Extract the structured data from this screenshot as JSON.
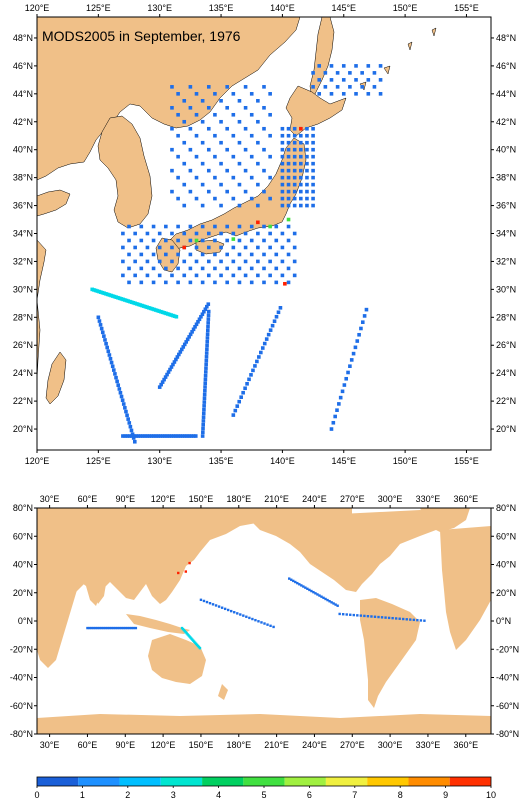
{
  "top_map": {
    "title": "MODS2005 in September, 1976",
    "lon_ticks": [
      "120°E",
      "125°E",
      "130°E",
      "135°E",
      "140°E",
      "145°E",
      "150°E",
      "155°E"
    ],
    "lat_ticks": [
      "48°N",
      "46°N",
      "44°N",
      "42°N",
      "40°N",
      "38°N",
      "36°N",
      "34°N",
      "32°N",
      "30°N",
      "28°N",
      "26°N",
      "24°N",
      "22°N",
      "20°N"
    ],
    "lon_range": [
      120,
      157
    ],
    "lat_range": [
      18.5,
      49.5
    ]
  },
  "bottom_map": {
    "lon_ticks": [
      "30°E",
      "60°E",
      "90°E",
      "120°E",
      "150°E",
      "180°E",
      "210°E",
      "240°E",
      "270°E",
      "300°E",
      "330°E",
      "360°E"
    ],
    "lat_ticks": [
      "80°N",
      "60°N",
      "40°N",
      "20°N",
      "0°N",
      "-20°N",
      "-40°N",
      "-60°N",
      "-80°N"
    ],
    "lon_range": [
      20,
      380
    ],
    "lat_range": [
      -80,
      80
    ]
  },
  "colorbar": {
    "labels": [
      "0",
      "1",
      "2",
      "3",
      "4",
      "5",
      "6",
      "7",
      "8",
      "9",
      "10"
    ],
    "colors": [
      "#1a5fd8",
      "#1e90ff",
      "#00bfff",
      "#00e5d0",
      "#00d060",
      "#40e040",
      "#a0f040",
      "#f0f040",
      "#ffc800",
      "#ff8c00",
      "#ff3000"
    ]
  },
  "colors": {
    "land": "#f0c088",
    "water": "#ffffff",
    "obs_low": "#1e6ee8",
    "obs_mid": "#00d8e8",
    "obs_high": "#ff2000"
  }
}
